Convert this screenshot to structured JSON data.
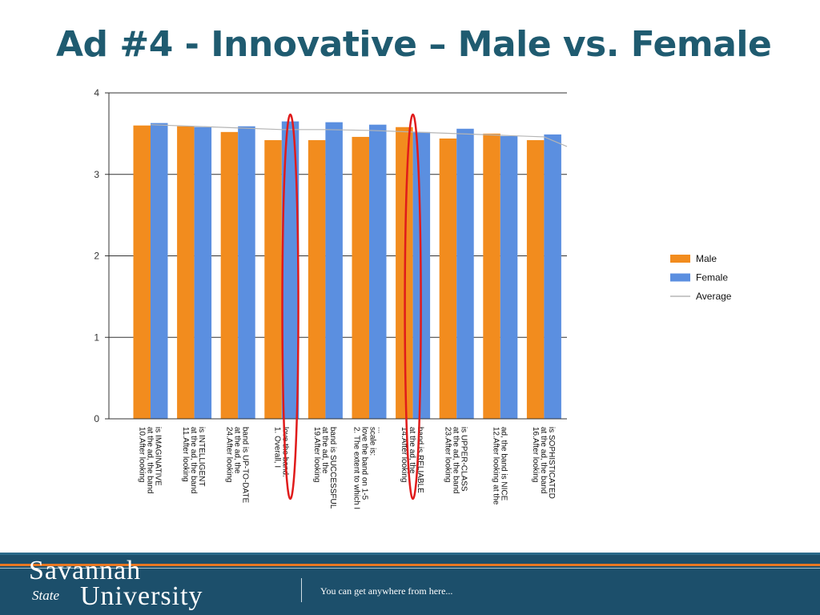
{
  "slide": {
    "title": "Ad #4 - Innovative – Male vs. Female",
    "title_color": "#1f5b70"
  },
  "chart_data": {
    "type": "bar",
    "ylim": [
      0,
      4
    ],
    "yticks": [
      0,
      1,
      2,
      3,
      4
    ],
    "grid": "horizontal",
    "legend_position": "right",
    "categories": [
      [
        "10.After looking",
        "at the ad, the band",
        "is IMAGINATIVE"
      ],
      [
        "11.After looking",
        "at the ad, the band",
        "is INTELLIGENT"
      ],
      [
        "24.After looking",
        "at the ad, the",
        "band is UP-TO-DATE"
      ],
      [
        "1. Overall, I",
        "love the band."
      ],
      [
        "19.After looking",
        "at the ad, the",
        "band is SUCCESSFUL"
      ],
      [
        "2. The extent to which I",
        "love the band on 1-5",
        "scale is:",
        "..."
      ],
      [
        "14.After looking",
        "at the ad, the",
        "band is RELIABLE"
      ],
      [
        "23.After looking",
        "at the ad, the band",
        "is UPPER-CLASS"
      ],
      [
        "12.After looking at the",
        "ad, the band is NICE"
      ],
      [
        "16.After looking",
        "at the ad, the band",
        "is SOPHISTICATED"
      ]
    ],
    "series": [
      {
        "name": "Male",
        "color": "#f28c1e",
        "values": [
          3.6,
          3.59,
          3.52,
          3.42,
          3.42,
          3.46,
          3.58,
          3.44,
          3.5,
          3.42
        ]
      },
      {
        "name": "Female",
        "color": "#5b8fe0",
        "values": [
          3.63,
          3.58,
          3.59,
          3.65,
          3.64,
          3.61,
          3.52,
          3.56,
          3.47,
          3.49
        ]
      }
    ],
    "average": {
      "name": "Average",
      "color": "#b5b5b5",
      "values": [
        3.61,
        3.59,
        3.57,
        3.55,
        3.55,
        3.54,
        3.52,
        3.5,
        3.48,
        3.46
      ]
    },
    "highlight_color": "#e01b1b"
  },
  "footer": {
    "logo_line1": "Savannah",
    "logo_state": "State",
    "logo_line2": "University",
    "tagline": "You can get anywhere from here...",
    "accent_color": "#e87722"
  }
}
